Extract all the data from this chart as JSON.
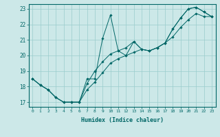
{
  "xlabel": "Humidex (Indice chaleur)",
  "xlim": [
    -0.5,
    23.5
  ],
  "ylim": [
    16.7,
    23.3
  ],
  "yticks": [
    17,
    18,
    19,
    20,
    21,
    22,
    23
  ],
  "xticks": [
    0,
    1,
    2,
    3,
    4,
    5,
    6,
    7,
    8,
    9,
    10,
    11,
    12,
    13,
    14,
    15,
    16,
    17,
    18,
    19,
    20,
    21,
    22,
    23
  ],
  "background_color": "#cce8e8",
  "grid_color": "#99cccc",
  "line_color": "#006666",
  "line1_x": [
    0,
    1,
    2,
    3,
    4,
    5,
    6,
    7,
    8,
    9,
    10,
    11,
    12,
    13,
    14,
    15,
    16,
    17,
    18,
    19,
    20,
    21,
    22,
    23
  ],
  "line1_y": [
    18.5,
    18.1,
    17.8,
    17.3,
    17.0,
    17.0,
    17.0,
    18.5,
    18.5,
    21.1,
    22.6,
    20.3,
    20.0,
    20.9,
    20.4,
    20.3,
    20.5,
    20.8,
    21.7,
    22.4,
    23.0,
    23.1,
    22.8,
    22.5
  ],
  "line2_x": [
    0,
    1,
    2,
    3,
    4,
    5,
    6,
    7,
    8,
    9,
    10,
    11,
    12,
    13,
    14,
    15,
    16,
    17,
    18,
    19,
    20,
    21,
    22,
    23
  ],
  "line2_y": [
    18.5,
    18.1,
    17.8,
    17.3,
    17.0,
    17.0,
    17.0,
    18.2,
    19.0,
    19.6,
    20.1,
    20.3,
    20.5,
    20.9,
    20.4,
    20.3,
    20.5,
    20.8,
    21.7,
    22.4,
    23.0,
    23.1,
    22.8,
    22.5
  ],
  "line3_x": [
    0,
    1,
    2,
    3,
    4,
    5,
    6,
    7,
    8,
    9,
    10,
    11,
    12,
    13,
    14,
    15,
    16,
    17,
    18,
    19,
    20,
    21,
    22,
    23
  ],
  "line3_y": [
    18.5,
    18.1,
    17.8,
    17.3,
    17.0,
    17.0,
    17.0,
    17.8,
    18.3,
    18.9,
    19.5,
    19.8,
    20.0,
    20.2,
    20.4,
    20.3,
    20.5,
    20.8,
    21.2,
    21.8,
    22.3,
    22.7,
    22.5,
    22.5
  ]
}
